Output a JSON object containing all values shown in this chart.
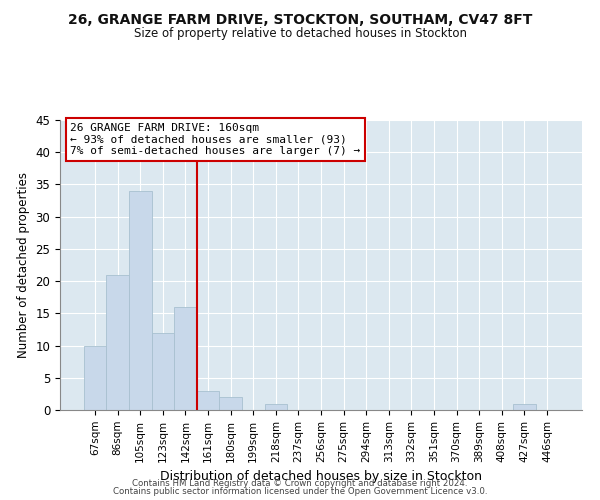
{
  "title1": "26, GRANGE FARM DRIVE, STOCKTON, SOUTHAM, CV47 8FT",
  "title2": "Size of property relative to detached houses in Stockton",
  "xlabel": "Distribution of detached houses by size in Stockton",
  "ylabel": "Number of detached properties",
  "bar_labels": [
    "67sqm",
    "86sqm",
    "105sqm",
    "123sqm",
    "142sqm",
    "161sqm",
    "180sqm",
    "199sqm",
    "218sqm",
    "237sqm",
    "256sqm",
    "275sqm",
    "294sqm",
    "313sqm",
    "332sqm",
    "351sqm",
    "370sqm",
    "389sqm",
    "408sqm",
    "427sqm",
    "446sqm"
  ],
  "bar_values": [
    10,
    21,
    34,
    12,
    16,
    3,
    2,
    0,
    1,
    0,
    0,
    0,
    0,
    0,
    0,
    0,
    0,
    0,
    0,
    1,
    0
  ],
  "bar_color": "#c8d8ea",
  "bar_edge_color": "#a8c0d0",
  "vline_color": "#cc0000",
  "vline_index": 5,
  "ylim": [
    0,
    45
  ],
  "yticks": [
    0,
    5,
    10,
    15,
    20,
    25,
    30,
    35,
    40,
    45
  ],
  "annotation_title": "26 GRANGE FARM DRIVE: 160sqm",
  "annotation_line1": "← 93% of detached houses are smaller (93)",
  "annotation_line2": "7% of semi-detached houses are larger (7) →",
  "annotation_box_color": "#ffffff",
  "annotation_box_edge": "#cc0000",
  "bg_color": "#dce8f0",
  "grid_color": "#ffffff",
  "footer1": "Contains HM Land Registry data © Crown copyright and database right 2024.",
  "footer2": "Contains public sector information licensed under the Open Government Licence v3.0."
}
